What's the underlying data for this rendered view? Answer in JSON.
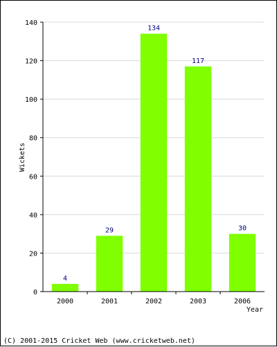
{
  "chart_data": {
    "type": "bar",
    "categories": [
      "2000",
      "2001",
      "2002",
      "2003",
      "2006"
    ],
    "values": [
      4,
      29,
      134,
      117,
      30
    ],
    "title": "",
    "xlabel": "Year",
    "ylabel": "Wickets",
    "ylim": [
      0,
      140
    ],
    "yticks": [
      0,
      20,
      40,
      60,
      80,
      100,
      120,
      140
    ],
    "data_labels": [
      "4",
      "29",
      "134",
      "117",
      "30"
    ],
    "grid": true,
    "bar_color": "#7fff00",
    "label_color": "#000080"
  },
  "footer": "(C) 2001-2015 Cricket Web (www.cricketweb.net)"
}
